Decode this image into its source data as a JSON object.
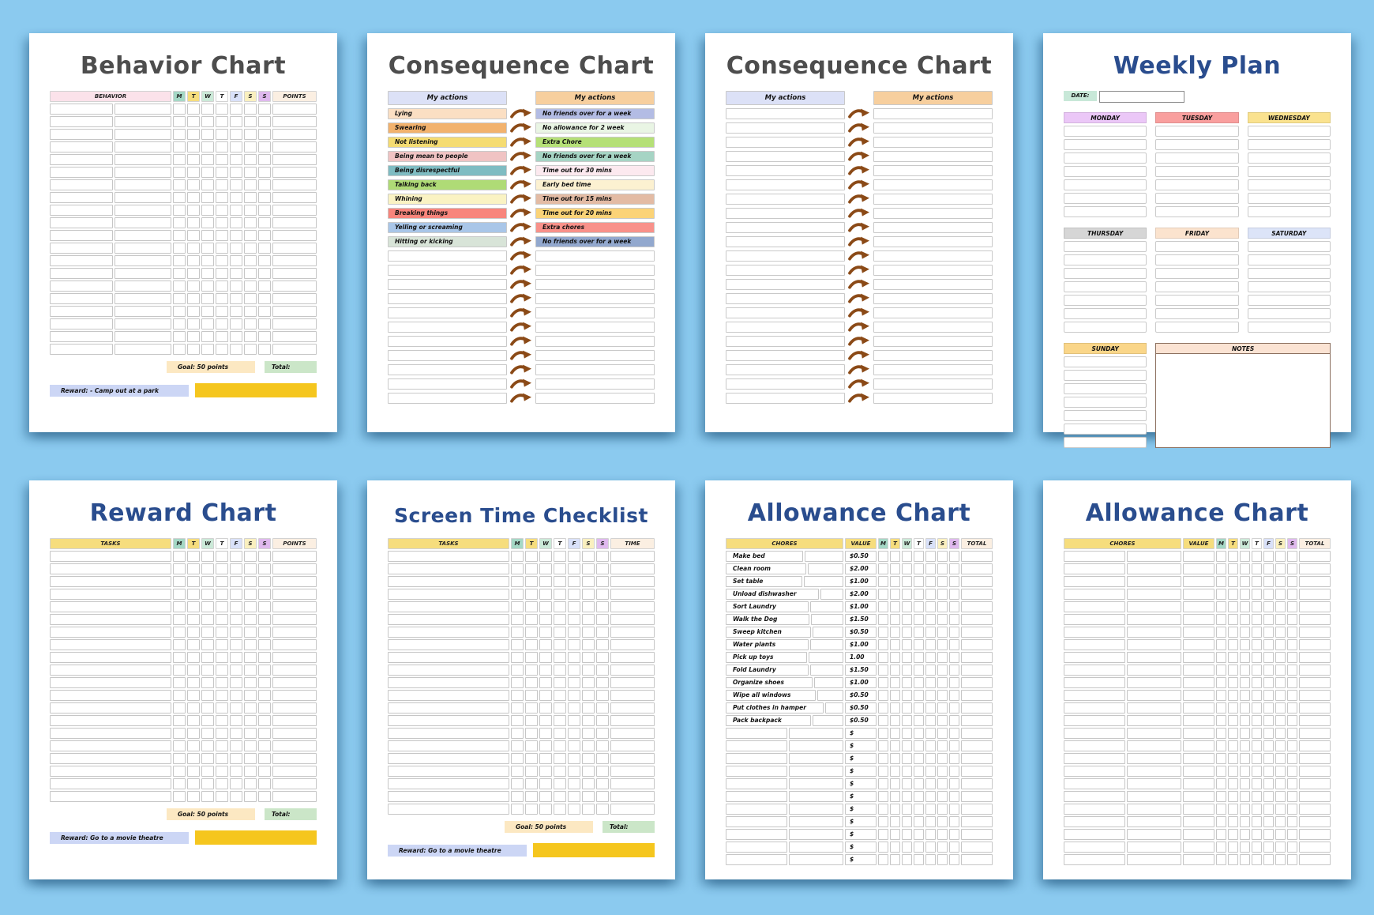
{
  "page_background": "#8BCAEF",
  "cards": [
    {
      "id": "behavior-chart",
      "type": "checklist",
      "title": "Behavior Chart",
      "title_color": "#4D4D4D",
      "name_header": "BEHAVIOR",
      "name_header_bg": "#FBE2EA",
      "name_split": true,
      "days": [
        {
          "label": "M",
          "bg": "#A5D8C6"
        },
        {
          "label": "T",
          "bg": "#F6DD7D"
        },
        {
          "label": "W",
          "bg": "#CBE9D8"
        },
        {
          "label": "T",
          "bg": "#FFFFFF"
        },
        {
          "label": "F",
          "bg": "#D9E1F9"
        },
        {
          "label": "S",
          "bg": "#FAF0BF"
        },
        {
          "label": "S",
          "bg": "#DFB9EE"
        }
      ],
      "last_header": "POINTS",
      "last_header_bg": "#FBEFE2",
      "row_count": 20,
      "footer": {
        "goal": "Goal: 50 points",
        "total": "Total:",
        "reward": "Reward: - Camp out at a park",
        "goal_bg": "#FCE8C2",
        "total_bg": "#CBE6C8",
        "reward_bg": "#CCD6F5",
        "bar_color": "#F5C61E"
      }
    },
    {
      "id": "consequence-chart-filled",
      "type": "consequence",
      "title": "Consequence Chart",
      "title_color": "#4D4D4D",
      "left_header": "My actions",
      "left_header_bg": "#DCE1F7",
      "right_header": "My actions",
      "right_header_bg": "#F7CF9E",
      "arrow_color": "#8B4A17",
      "rows": [
        {
          "left": "Lying",
          "left_bg": "#FBDFC3",
          "right": "No friends over for a week",
          "right_bg": "#B3BCE4"
        },
        {
          "left": "Swearing",
          "left_bg": "#F2B26D",
          "right": "No allowance for 2 week",
          "right_bg": "#E9F5E4"
        },
        {
          "left": "Not listening",
          "left_bg": "#F5DC72",
          "right": "Extra Chore",
          "right_bg": "#B5E077"
        },
        {
          "left": "Being mean to people",
          "left_bg": "#F0C3C3",
          "right": "No friends over for a week",
          "right_bg": "#A6D4C4"
        },
        {
          "left": "Being disrespectful",
          "left_bg": "#7FBCC2",
          "right": "Time out for 30 mins",
          "right_bg": "#FCE9EF"
        },
        {
          "left": "Talking back",
          "left_bg": "#AFDB76",
          "right": "Early bed time",
          "right_bg": "#FCF1D1"
        },
        {
          "left": "Whining",
          "left_bg": "#FAF3C3",
          "right": "Time out for 15 mins",
          "right_bg": "#E3BBA4"
        },
        {
          "left": "Breaking things",
          "left_bg": "#F8857C",
          "right": "Time out for 20 mins",
          "right_bg": "#FBD377"
        },
        {
          "left": "Yelling or screaming",
          "left_bg": "#A9C6E8",
          "right": "Extra chores",
          "right_bg": "#F8918A"
        },
        {
          "left": "Hitting or kicking",
          "left_bg": "#D8E4D8",
          "right": "No friends over for a week",
          "right_bg": "#92A8CE"
        }
      ],
      "blank_row_count": 11
    },
    {
      "id": "consequence-chart-blank",
      "type": "consequence",
      "title": "Consequence Chart",
      "title_color": "#4D4D4D",
      "left_header": "My actions",
      "left_header_bg": "#DCE1F7",
      "right_header": "My actions",
      "right_header_bg": "#F7CF9E",
      "arrow_color": "#8B4A17",
      "rows": [],
      "blank_row_count": 21
    },
    {
      "id": "weekly-plan",
      "type": "weekly",
      "title": "Weekly Plan",
      "title_color": "#2A4D8E",
      "date_label": "DATE:",
      "date_label_bg": "#C8E8D8",
      "rows_per_day": 7,
      "day_sections": [
        {
          "label": "MONDAY",
          "bg": "#EBC7F7"
        },
        {
          "label": "TUESDAY",
          "bg": "#F99F9E"
        },
        {
          "label": "WEDNESDAY",
          "bg": "#FAE28F"
        },
        {
          "label": "THURSDAY",
          "bg": "#D6D6D6"
        },
        {
          "label": "FRIDAY",
          "bg": "#FBE3CE"
        },
        {
          "label": "SATURDAY",
          "bg": "#DCE4F8"
        },
        {
          "label": "SUNDAY",
          "bg": "#FAD689"
        }
      ],
      "notes_label": "NOTES",
      "notes_label_bg": "#FBE3D3"
    },
    {
      "id": "reward-chart",
      "type": "checklist",
      "title": "Reward Chart",
      "title_color": "#2A4D8E",
      "name_header": "TASKS",
      "name_header_bg": "#F6DD7D",
      "name_split": false,
      "days": [
        {
          "label": "M",
          "bg": "#A5D8C6"
        },
        {
          "label": "T",
          "bg": "#F6DD7D"
        },
        {
          "label": "W",
          "bg": "#CBE9D8"
        },
        {
          "label": "T",
          "bg": "#FFFFFF"
        },
        {
          "label": "F",
          "bg": "#D9E1F9"
        },
        {
          "label": "S",
          "bg": "#FAF0BF"
        },
        {
          "label": "S",
          "bg": "#DFB9EE"
        }
      ],
      "last_header": "POINTS",
      "last_header_bg": "#FBEFE2",
      "row_count": 20,
      "footer": {
        "goal": "Goal: 50 points",
        "total": "Total:",
        "reward": "Reward: Go to a movie theatre",
        "goal_bg": "#FCE8C2",
        "total_bg": "#CBE6C8",
        "reward_bg": "#CCD6F5",
        "bar_color": "#F5C61E"
      }
    },
    {
      "id": "screen-time-checklist",
      "type": "checklist",
      "title": "Screen Time Checklist",
      "title_color": "#2A4D8E",
      "name_header": "TASKS",
      "name_header_bg": "#F6DD7D",
      "name_split": false,
      "days": [
        {
          "label": "M",
          "bg": "#A5D8C6"
        },
        {
          "label": "T",
          "bg": "#F6DD7D"
        },
        {
          "label": "W",
          "bg": "#CBE9D8"
        },
        {
          "label": "T",
          "bg": "#FFFFFF"
        },
        {
          "label": "F",
          "bg": "#D9E1F9"
        },
        {
          "label": "S",
          "bg": "#FAF0BF"
        },
        {
          "label": "S",
          "bg": "#DFB9EE"
        }
      ],
      "last_header": "TIME",
      "last_header_bg": "#FBEFE2",
      "row_count": 21,
      "footer": {
        "goal": "Goal: 50 points",
        "total": "Total:",
        "reward": "Reward: Go to a movie theatre",
        "goal_bg": "#FCE8C2",
        "total_bg": "#CBE6C8",
        "reward_bg": "#CCD6F5",
        "bar_color": "#F5C61E"
      }
    },
    {
      "id": "allowance-chart-filled",
      "type": "checklist",
      "title": "Allowance Chart",
      "title_color": "#2A4D8E",
      "name_header": "CHORES",
      "name_header_bg": "#F6DD7D",
      "name_split": true,
      "value_header": "VALUE",
      "value_header_bg": "#F6DD7D",
      "days": [
        {
          "label": "M",
          "bg": "#A5D8C6"
        },
        {
          "label": "T",
          "bg": "#F6DD7D"
        },
        {
          "label": "W",
          "bg": "#CBE9D8"
        },
        {
          "label": "T",
          "bg": "#FFFFFF"
        },
        {
          "label": "F",
          "bg": "#D9E1F9"
        },
        {
          "label": "S",
          "bg": "#FAF0BF"
        },
        {
          "label": "S",
          "bg": "#DFB9EE"
        }
      ],
      "last_header": "TOTAL",
      "last_header_bg": "#FBEFE2",
      "row_count": 25,
      "names": [
        "Make bed",
        "Clean room",
        "Set table",
        "Unload dishwasher",
        "Sort Laundry",
        "Walk the Dog",
        "Sweep kitchen",
        "Water plants",
        "Pick up toys",
        "Fold Laundry",
        "Organize shoes",
        "Wipe all windows",
        "Put clothes in hamper",
        "Pack backpack"
      ],
      "values": [
        "$0.50",
        "$2.00",
        "$1.00",
        "$2.00",
        "$1.00",
        "$1.50",
        "$0.50",
        "$1.00",
        "1.00",
        "$1.50",
        "$1.00",
        "$0.50",
        "$0.50",
        "$0.50"
      ],
      "value_fill": "$"
    },
    {
      "id": "allowance-chart-blank",
      "type": "checklist",
      "title": "Allowance Chart",
      "title_color": "#2A4D8E",
      "name_header": "CHORES",
      "name_header_bg": "#F6DD7D",
      "name_split": true,
      "value_header": "VALUE",
      "value_header_bg": "#F6DD7D",
      "days": [
        {
          "label": "M",
          "bg": "#A5D8C6"
        },
        {
          "label": "T",
          "bg": "#F6DD7D"
        },
        {
          "label": "W",
          "bg": "#CBE9D8"
        },
        {
          "label": "T",
          "bg": "#FFFFFF"
        },
        {
          "label": "F",
          "bg": "#D9E1F9"
        },
        {
          "label": "S",
          "bg": "#FAF0BF"
        },
        {
          "label": "S",
          "bg": "#DFB9EE"
        }
      ],
      "last_header": "TOTAL",
      "last_header_bg": "#FBEFE2",
      "row_count": 25,
      "value_fill": ""
    }
  ]
}
